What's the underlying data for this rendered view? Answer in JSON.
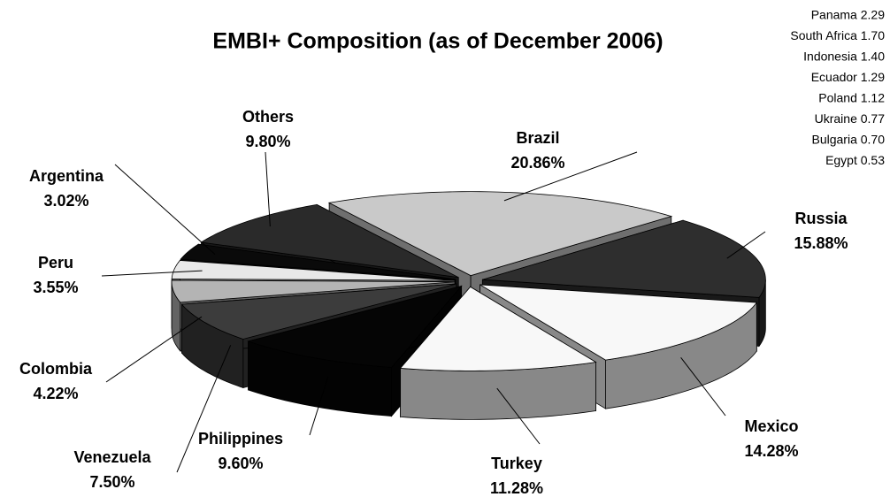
{
  "chart_data": {
    "type": "pie3d",
    "title": "EMBI+ Composition (as of December 2006)",
    "categories": [
      "Brazil",
      "Russia",
      "Mexico",
      "Turkey",
      "Philippines",
      "Venezuela",
      "Colombia",
      "Peru",
      "Argentina",
      "Others"
    ],
    "values": [
      20.86,
      15.88,
      14.28,
      11.28,
      9.6,
      7.5,
      4.22,
      3.55,
      3.02,
      9.8
    ],
    "value_labels": [
      "20.86%",
      "15.88%",
      "14.28%",
      "11.28%",
      "9.60%",
      "7.50%",
      "4.22%",
      "3.55%",
      "3.02%",
      "9.80%"
    ],
    "colors": [
      "#c9c9c9",
      "#2e2e2e",
      "#f8f8f8",
      "#f8f8f8",
      "#050505",
      "#3c3c3c",
      "#b4b4b4",
      "#e8e8e8",
      "#0a0a0a",
      "#2a2a2a"
    ],
    "annotations": [
      "Panama 2.29",
      "South Africa 1.70",
      "Indonesia 1.40",
      "Ecuador 1.29",
      "Poland 1.12",
      "Ukraine 0.77",
      "Bulgaria 0.70",
      "Egypt 0.53"
    ]
  }
}
